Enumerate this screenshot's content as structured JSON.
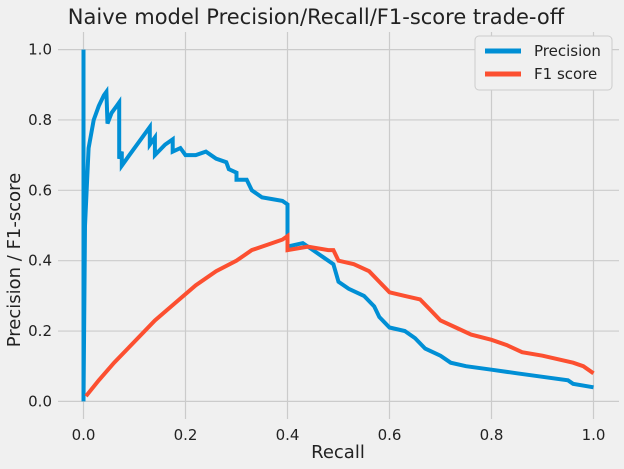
{
  "chart_data": {
    "type": "line",
    "title": "Naive model Precision/Recall/F1-score trade-off",
    "xlabel": "Recall",
    "ylabel": "Precision / F1-score",
    "xlim": [
      -0.05,
      1.05
    ],
    "ylim": [
      -0.05,
      1.05
    ],
    "xticks": [
      "0.0",
      "0.2",
      "0.4",
      "0.6",
      "0.8",
      "1.0"
    ],
    "yticks": [
      "0.0",
      "0.2",
      "0.4",
      "0.6",
      "0.8",
      "1.0"
    ],
    "grid": true,
    "legend_position": "top-right",
    "background": "#f0f0f0",
    "grid_color": "#cbcbcb",
    "series": [
      {
        "name": "Precision",
        "color": "#008fd5",
        "points": [
          [
            0.0,
            1.0
          ],
          [
            0.0,
            0.0
          ],
          [
            0.003,
            0.5
          ],
          [
            0.01,
            0.72
          ],
          [
            0.02,
            0.8
          ],
          [
            0.03,
            0.84
          ],
          [
            0.04,
            0.87
          ],
          [
            0.045,
            0.88
          ],
          [
            0.047,
            0.79
          ],
          [
            0.055,
            0.82
          ],
          [
            0.065,
            0.84
          ],
          [
            0.07,
            0.85
          ],
          [
            0.07,
            0.69
          ],
          [
            0.075,
            0.71
          ],
          [
            0.075,
            0.67
          ],
          [
            0.09,
            0.7
          ],
          [
            0.11,
            0.74
          ],
          [
            0.13,
            0.78
          ],
          [
            0.13,
            0.73
          ],
          [
            0.14,
            0.75
          ],
          [
            0.14,
            0.7
          ],
          [
            0.16,
            0.73
          ],
          [
            0.175,
            0.745
          ],
          [
            0.175,
            0.71
          ],
          [
            0.19,
            0.72
          ],
          [
            0.2,
            0.7
          ],
          [
            0.22,
            0.7
          ],
          [
            0.24,
            0.71
          ],
          [
            0.26,
            0.69
          ],
          [
            0.28,
            0.68
          ],
          [
            0.285,
            0.66
          ],
          [
            0.3,
            0.65
          ],
          [
            0.3,
            0.63
          ],
          [
            0.32,
            0.63
          ],
          [
            0.33,
            0.6
          ],
          [
            0.35,
            0.58
          ],
          [
            0.37,
            0.575
          ],
          [
            0.39,
            0.57
          ],
          [
            0.4,
            0.56
          ],
          [
            0.4,
            0.44
          ],
          [
            0.43,
            0.45
          ],
          [
            0.45,
            0.43
          ],
          [
            0.47,
            0.41
          ],
          [
            0.49,
            0.39
          ],
          [
            0.5,
            0.34
          ],
          [
            0.52,
            0.32
          ],
          [
            0.55,
            0.3
          ],
          [
            0.57,
            0.27
          ],
          [
            0.58,
            0.24
          ],
          [
            0.6,
            0.21
          ],
          [
            0.63,
            0.2
          ],
          [
            0.65,
            0.18
          ],
          [
            0.67,
            0.15
          ],
          [
            0.7,
            0.13
          ],
          [
            0.72,
            0.11
          ],
          [
            0.75,
            0.1
          ],
          [
            0.8,
            0.09
          ],
          [
            0.85,
            0.08
          ],
          [
            0.9,
            0.07
          ],
          [
            0.95,
            0.06
          ],
          [
            0.96,
            0.05
          ],
          [
            1.0,
            0.04
          ]
        ]
      },
      {
        "name": "F1 score",
        "color": "#fc4f30",
        "points": [
          [
            0.005,
            0.015
          ],
          [
            0.03,
            0.06
          ],
          [
            0.06,
            0.11
          ],
          [
            0.1,
            0.17
          ],
          [
            0.14,
            0.23
          ],
          [
            0.18,
            0.28
          ],
          [
            0.22,
            0.33
          ],
          [
            0.26,
            0.37
          ],
          [
            0.3,
            0.4
          ],
          [
            0.33,
            0.43
          ],
          [
            0.36,
            0.445
          ],
          [
            0.39,
            0.46
          ],
          [
            0.4,
            0.47
          ],
          [
            0.4,
            0.43
          ],
          [
            0.44,
            0.44
          ],
          [
            0.48,
            0.43
          ],
          [
            0.49,
            0.43
          ],
          [
            0.5,
            0.4
          ],
          [
            0.53,
            0.39
          ],
          [
            0.56,
            0.37
          ],
          [
            0.58,
            0.34
          ],
          [
            0.6,
            0.31
          ],
          [
            0.63,
            0.3
          ],
          [
            0.66,
            0.29
          ],
          [
            0.68,
            0.26
          ],
          [
            0.7,
            0.23
          ],
          [
            0.73,
            0.21
          ],
          [
            0.76,
            0.19
          ],
          [
            0.8,
            0.175
          ],
          [
            0.83,
            0.16
          ],
          [
            0.86,
            0.14
          ],
          [
            0.9,
            0.13
          ],
          [
            0.93,
            0.12
          ],
          [
            0.96,
            0.11
          ],
          [
            0.98,
            0.1
          ],
          [
            1.0,
            0.08
          ]
        ]
      }
    ]
  }
}
